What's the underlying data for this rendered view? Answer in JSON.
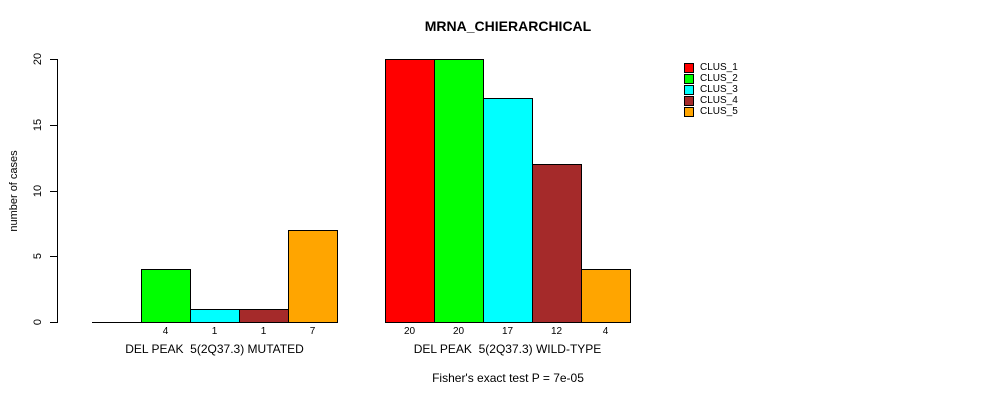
{
  "chart_data": {
    "type": "bar",
    "title": "MRNA_CHIERARCHICAL",
    "ylabel": "number of cases",
    "caption": "Fisher's exact test P = 7e-05",
    "ylim": [
      0,
      20
    ],
    "yticks": [
      0,
      5,
      10,
      15,
      20
    ],
    "grid": false,
    "series": [
      "CLUS_1",
      "CLUS_2",
      "CLUS_3",
      "CLUS_4",
      "CLUS_5"
    ],
    "colors": [
      "#FF0000",
      "#00FF00",
      "#00FFFF",
      "#A52A2A",
      "#FFA500"
    ],
    "groups": [
      {
        "label": "DEL PEAK  5(2Q37.3) MUTATED",
        "values": [
          0,
          4,
          1,
          1,
          7
        ],
        "bar_labels": [
          "",
          "4",
          "1",
          "1",
          "7"
        ]
      },
      {
        "label": "DEL PEAK  5(2Q37.3) WILD-TYPE",
        "values": [
          20,
          20,
          17,
          12,
          4
        ],
        "bar_labels": [
          "20",
          "20",
          "17",
          "12",
          "4"
        ]
      }
    ],
    "legend": {
      "position": "right",
      "entries": [
        {
          "label": "CLUS_1",
          "color": "#FF0000"
        },
        {
          "label": "CLUS_2",
          "color": "#00FF00"
        },
        {
          "label": "CLUS_3",
          "color": "#00FFFF"
        },
        {
          "label": "CLUS_4",
          "color": "#A52A2A"
        },
        {
          "label": "CLUS_5",
          "color": "#FFA500"
        }
      ]
    }
  }
}
